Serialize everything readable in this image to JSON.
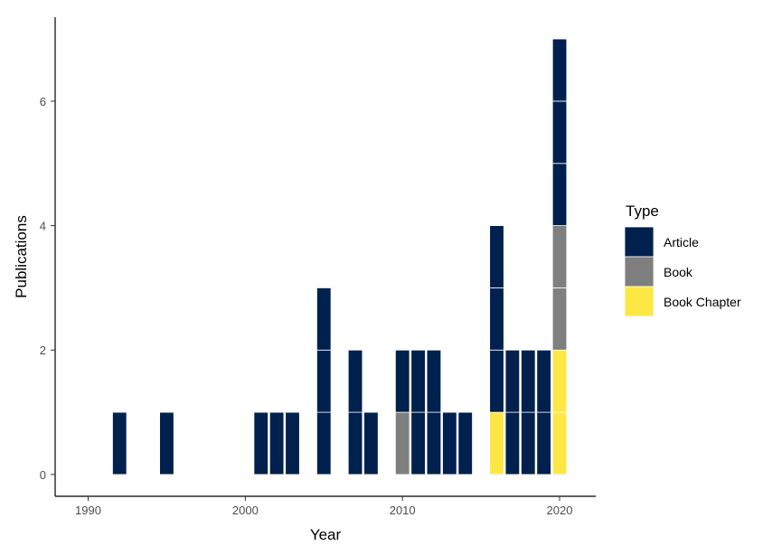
{
  "chart_data": {
    "type": "bar",
    "stacked": true,
    "xlabel": "Year",
    "ylabel": "Publications",
    "xlim": [
      1987.9,
      2022.3
    ],
    "ylim": [
      -0.35,
      7.35
    ],
    "x_ticks": [
      1990,
      2000,
      2010,
      2020
    ],
    "y_ticks": [
      0,
      2,
      4,
      6
    ],
    "grid": false,
    "legend": {
      "title": "Type",
      "position": "right"
    },
    "x": [
      1992,
      1995,
      2001,
      2002,
      2003,
      2005,
      2007,
      2008,
      2010,
      2011,
      2012,
      2013,
      2014,
      2016,
      2017,
      2018,
      2019,
      2020
    ],
    "series": [
      {
        "name": "Book Chapter",
        "color": "#FDE745",
        "values": [
          0,
          0,
          0,
          0,
          0,
          0,
          0,
          0,
          0,
          0,
          0,
          0,
          0,
          1,
          0,
          0,
          0,
          2
        ]
      },
      {
        "name": "Book",
        "color": "#7F7F7F",
        "values": [
          0,
          0,
          0,
          0,
          0,
          0,
          0,
          0,
          1,
          0,
          0,
          0,
          0,
          0,
          0,
          0,
          0,
          2
        ]
      },
      {
        "name": "Article",
        "color": "#00204D",
        "values": [
          1,
          1,
          1,
          1,
          1,
          3,
          2,
          1,
          1,
          2,
          2,
          1,
          1,
          3,
          2,
          2,
          2,
          3
        ]
      }
    ],
    "legend_order": [
      "Article",
      "Book",
      "Book Chapter"
    ]
  }
}
